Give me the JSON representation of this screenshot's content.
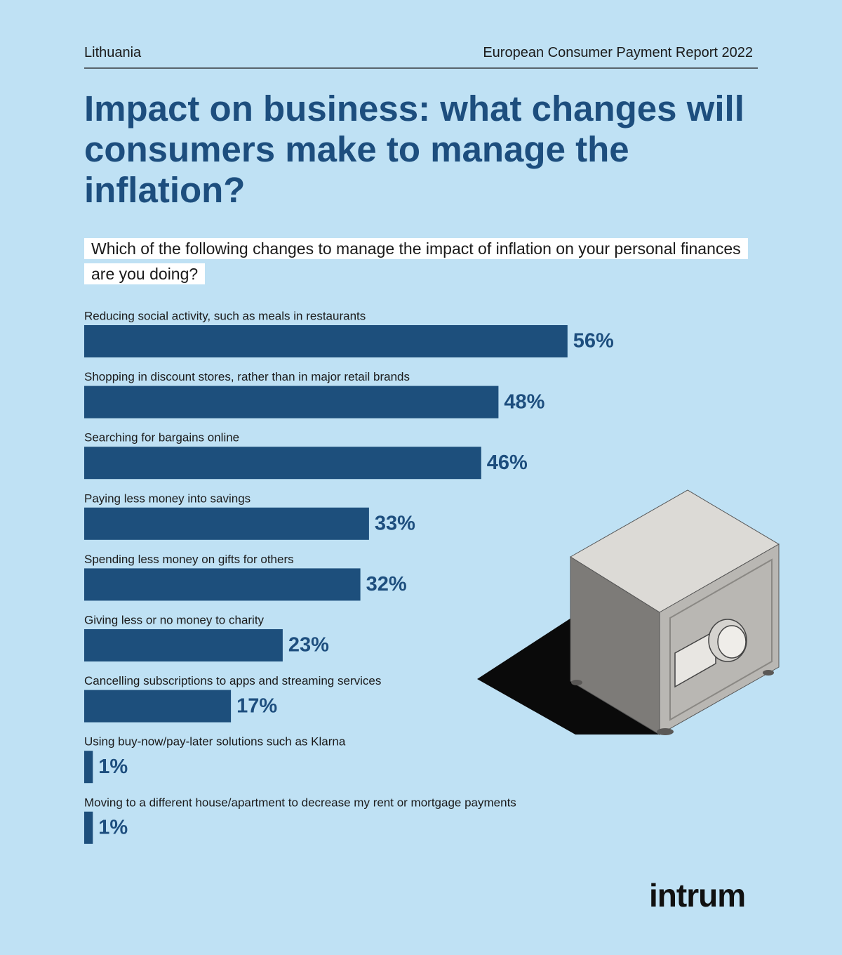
{
  "header": {
    "country": "Lithuania",
    "report": "European Consumer Payment Report 2022"
  },
  "chart_data": {
    "type": "bar",
    "title": "Impact on business: what changes will consumers make to manage the inflation?",
    "subtitle": "Which of the following changes to manage the impact of inflation on your personal finances are you doing?",
    "categories": [
      "Reducing social activity, such as meals in restaurants",
      "Shopping in discount stores, rather than in major retail brands",
      "Searching for bargains online",
      "Paying less money into savings",
      "Spending less money on gifts for others",
      "Giving less or no money to charity",
      "Cancelling subscriptions to apps and streaming services",
      "Using buy-now/pay-later solutions such as Klarna",
      "Moving to a different house/apartment to decrease my rent or mortgage payments"
    ],
    "values": [
      56,
      48,
      46,
      33,
      32,
      23,
      17,
      1,
      1
    ],
    "value_labels": [
      "56%",
      "48%",
      "46%",
      "33%",
      "32%",
      "23%",
      "17%",
      "1%",
      "1%"
    ],
    "color": "#1d4f7c"
  },
  "logo": "intrum"
}
